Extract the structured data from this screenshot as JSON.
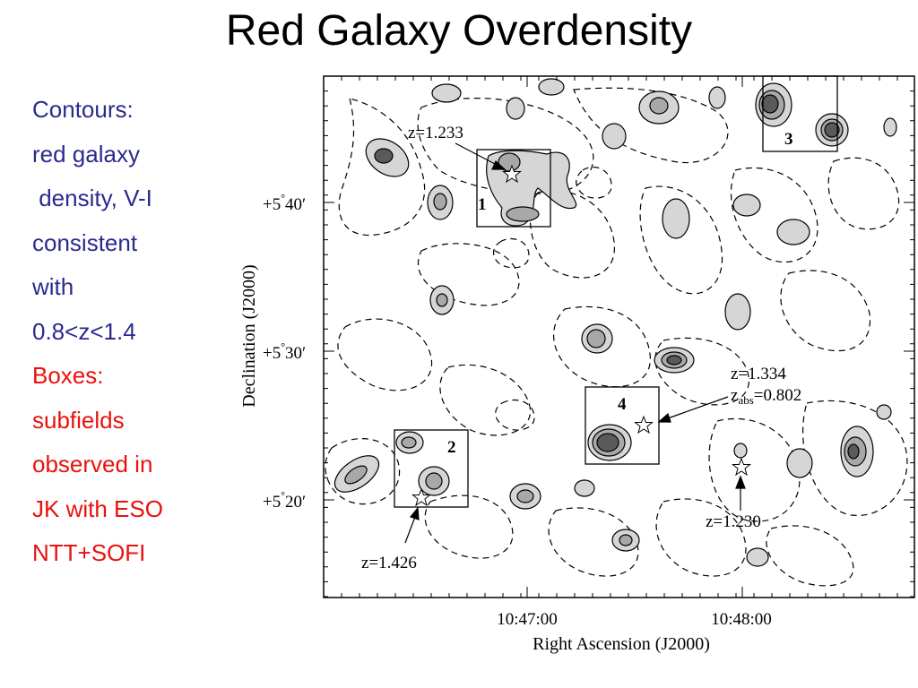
{
  "title": "Red Galaxy Overdensity",
  "colors": {
    "contours_text": "#2b2a8f",
    "boxes_text": "#e8120d",
    "fill_light": "#d6d6d6",
    "fill_mid": "#a8a8a8",
    "fill_dark": "#5a5a5a"
  },
  "side_text": {
    "contours": [
      "Contours:",
      "red galaxy",
      " density, V-I",
      "consistent",
      "with",
      "0.8<z<1.4"
    ],
    "boxes": [
      "Boxes:",
      "subfields",
      "observed in",
      "JK with ESO",
      "NTT+SOFI"
    ]
  },
  "map": {
    "x_axis": {
      "label": "Right Ascension (J2000)",
      "ticks": [
        "10:47:00",
        "10:48:00"
      ]
    },
    "y_axis": {
      "label": "Declination (J2000)",
      "ticks": [
        {
          "deg": "+5",
          "min": "40"
        },
        {
          "deg": "+5",
          "min": "30"
        },
        {
          "deg": "+5",
          "min": "20"
        }
      ]
    },
    "box_labels": [
      "1",
      "2",
      "3",
      "4"
    ],
    "redshift_labels": {
      "z1233": "z=1.233",
      "z1426": "z=1.426",
      "z1334": "z=1.334",
      "zabs_prefix": "z",
      "zabs_sub": "abs",
      "zabs_value": "=0.802",
      "z1230": "z=1.230"
    }
  }
}
